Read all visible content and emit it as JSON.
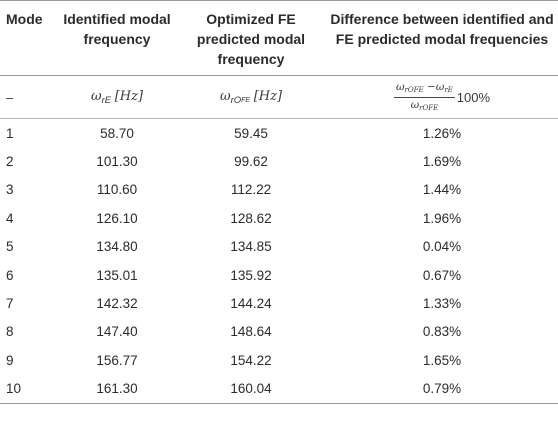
{
  "header": {
    "mode": "Mode",
    "identified": "Identified modal frequency",
    "optimized": "Optimized FE predicted modal frequency",
    "difference": "Difference between identified and FE predicted modal frequencies"
  },
  "units": {
    "mode": "–",
    "identified_sym": "ω",
    "identified_sub": "rE",
    "identified_unit": "[Hz]",
    "optimized_sym": "ω",
    "optimized_sub": "rO",
    "optimized_subsub": "FE",
    "optimized_unit": "[Hz]",
    "diff_num_a_sym": "ω",
    "diff_num_a_sub": "rOFE",
    "diff_num_minus": "−",
    "diff_num_b_sym": "ω",
    "diff_num_b_sub": "rE",
    "diff_den_sym": "ω",
    "diff_den_sub": "rOFE",
    "diff_factor": "100%"
  },
  "rows": [
    {
      "mode": "1",
      "identified": "58.70",
      "optimized": "59.45",
      "difference": "1.26%"
    },
    {
      "mode": "2",
      "identified": "101.30",
      "optimized": "99.62",
      "difference": "1.69%"
    },
    {
      "mode": "3",
      "identified": "110.60",
      "optimized": "112.22",
      "difference": "1.44%"
    },
    {
      "mode": "4",
      "identified": "126.10",
      "optimized": "128.62",
      "difference": "1.96%"
    },
    {
      "mode": "5",
      "identified": "134.80",
      "optimized": "134.85",
      "difference": "0.04%"
    },
    {
      "mode": "6",
      "identified": "135.01",
      "optimized": "135.92",
      "difference": "0.67%"
    },
    {
      "mode": "7",
      "identified": "142.32",
      "optimized": "144.24",
      "difference": "1.33%"
    },
    {
      "mode": "8",
      "identified": "147.40",
      "optimized": "148.64",
      "difference": "0.83%"
    },
    {
      "mode": "9",
      "identified": "156.77",
      "optimized": "154.22",
      "difference": "1.65%"
    },
    {
      "mode": "10",
      "identified": "161.30",
      "optimized": "160.04",
      "difference": "0.79%"
    }
  ]
}
